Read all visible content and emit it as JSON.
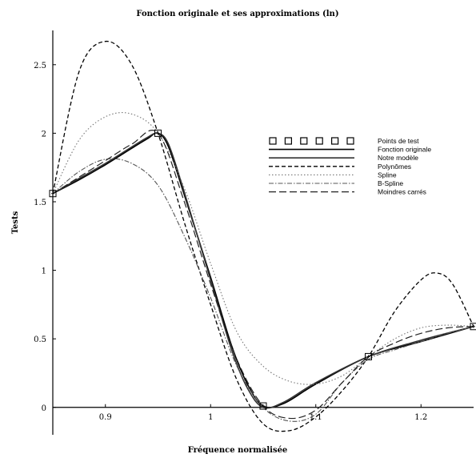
{
  "chart_data": {
    "type": "line",
    "title": "Fonction originale et ses approximations (ln)",
    "xlabel": "Fréquence normalisée",
    "ylabel": "Tests",
    "xlim": [
      0.85,
      1.25
    ],
    "ylim": [
      -0.2,
      2.75
    ],
    "x_ticks": [
      {
        "value": 0.9,
        "label": "0.9"
      },
      {
        "value": 1.0,
        "label": "1"
      },
      {
        "value": 1.1,
        "label": "1.1"
      },
      {
        "value": 1.2,
        "label": "1.2"
      }
    ],
    "y_ticks": [
      {
        "value": 0,
        "label": "0"
      },
      {
        "value": 0.5,
        "label": "0.5"
      },
      {
        "value": 1.0,
        "label": "1"
      },
      {
        "value": 1.5,
        "label": "1.5"
      },
      {
        "value": 2.0,
        "label": "2"
      },
      {
        "value": 2.5,
        "label": "2.5"
      }
    ],
    "grid": false,
    "legend_position": "right",
    "series": [
      {
        "name": "Points de test",
        "style": "markers",
        "color": "#000000",
        "x": [
          0.85,
          0.95,
          1.05,
          1.15,
          1.25
        ],
        "y": [
          1.56,
          2.0,
          0.01,
          0.37,
          0.59
        ]
      },
      {
        "name": "Fonction originale",
        "style": "solid",
        "color": "#000000",
        "x": [
          0.85,
          0.875,
          0.9,
          0.925,
          0.94,
          0.95,
          0.96,
          0.975,
          1.0,
          1.02,
          1.035,
          1.05,
          1.07,
          1.1,
          1.15,
          1.2,
          1.25
        ],
        "y": [
          1.56,
          1.66,
          1.77,
          1.89,
          1.96,
          2.0,
          1.9,
          1.55,
          0.95,
          0.45,
          0.17,
          0.01,
          0.03,
          0.17,
          0.37,
          0.48,
          0.59
        ]
      },
      {
        "name": "Notre modèle",
        "style": "solid",
        "color": "#333333",
        "x": [
          0.85,
          0.875,
          0.9,
          0.925,
          0.94,
          0.95,
          0.96,
          0.975,
          1.0,
          1.02,
          1.035,
          1.05,
          1.07,
          1.1,
          1.15,
          1.2,
          1.25
        ],
        "y": [
          1.56,
          1.67,
          1.78,
          1.9,
          1.97,
          2.0,
          1.92,
          1.57,
          0.93,
          0.42,
          0.14,
          0.0,
          0.04,
          0.18,
          0.37,
          0.49,
          0.59
        ]
      },
      {
        "name": "Polynômes",
        "style": "dash",
        "color": "#000000",
        "x": [
          0.85,
          0.875,
          0.9,
          0.925,
          0.95,
          0.975,
          1.0,
          1.025,
          1.05,
          1.075,
          1.1,
          1.125,
          1.15,
          1.175,
          1.2,
          1.215,
          1.23,
          1.25
        ],
        "y": [
          1.56,
          2.45,
          2.67,
          2.5,
          2.0,
          1.35,
          0.75,
          0.2,
          -0.12,
          -0.17,
          -0.07,
          0.12,
          0.37,
          0.7,
          0.93,
          0.98,
          0.9,
          0.59
        ]
      },
      {
        "name": "Spline",
        "style": "dot",
        "color": "#777777",
        "x": [
          0.85,
          0.875,
          0.9,
          0.925,
          0.95,
          0.975,
          1.0,
          1.025,
          1.05,
          1.075,
          1.1,
          1.125,
          1.15,
          1.175,
          1.2,
          1.225,
          1.25
        ],
        "y": [
          1.56,
          1.95,
          2.12,
          2.14,
          2.0,
          1.6,
          1.05,
          0.55,
          0.3,
          0.19,
          0.17,
          0.23,
          0.37,
          0.5,
          0.58,
          0.6,
          0.59
        ]
      },
      {
        "name": "B-Spline",
        "style": "dashdot",
        "color": "#555555",
        "x": [
          0.85,
          0.875,
          0.9,
          0.925,
          0.95,
          0.975,
          1.0,
          1.025,
          1.05,
          1.075,
          1.1,
          1.125,
          1.15,
          1.175,
          1.2,
          1.225,
          1.25
        ],
        "y": [
          1.56,
          1.72,
          1.81,
          1.78,
          1.62,
          1.25,
          0.8,
          0.3,
          0.0,
          -0.1,
          -0.05,
          0.18,
          0.35,
          0.42,
          0.48,
          0.54,
          0.59
        ]
      },
      {
        "name": "Moindres carrés",
        "style": "longdash",
        "color": "#222222",
        "x": [
          0.85,
          0.875,
          0.9,
          0.925,
          0.95,
          0.975,
          1.0,
          1.025,
          1.05,
          1.075,
          1.1,
          1.125,
          1.15,
          1.175,
          1.2,
          1.225,
          1.25
        ],
        "y": [
          1.56,
          1.68,
          1.8,
          1.92,
          2.0,
          1.5,
          0.9,
          0.35,
          0.01,
          -0.08,
          -0.02,
          0.18,
          0.37,
          0.47,
          0.54,
          0.58,
          0.59
        ]
      }
    ]
  }
}
